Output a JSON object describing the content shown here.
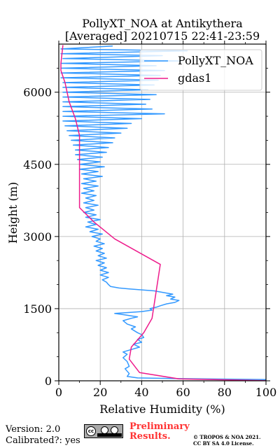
{
  "chart_data": {
    "type": "line",
    "title_line1": "PollyXT_NOA at Antikythera",
    "title_line2": "[Averaged] 20210715 22:41-23:59",
    "xlabel": "Relative Humidity (%)",
    "ylabel": "Height (m)",
    "xlim": [
      0,
      100
    ],
    "ylim": [
      0,
      7000
    ],
    "xticks": [
      0,
      20,
      40,
      60,
      80,
      100
    ],
    "yticks": [
      0,
      1500,
      3000,
      4500,
      6000
    ],
    "grid": true,
    "legend_position": "top-right",
    "series": [
      {
        "name": "PollyXT_NOA",
        "color": "#3399ff",
        "points": [
          [
            100,
            25
          ],
          [
            58,
            45
          ],
          [
            38,
            60
          ],
          [
            33,
            90
          ],
          [
            34,
            150
          ],
          [
            32,
            250
          ],
          [
            34,
            300
          ],
          [
            33,
            400
          ],
          [
            31,
            480
          ],
          [
            33,
            550
          ],
          [
            31,
            600
          ],
          [
            35,
            650
          ],
          [
            39,
            700
          ],
          [
            36,
            760
          ],
          [
            40,
            800
          ],
          [
            38,
            860
          ],
          [
            41,
            900
          ],
          [
            40,
            960
          ],
          [
            38,
            1000
          ],
          [
            35,
            1080
          ],
          [
            37,
            1120
          ],
          [
            33,
            1180
          ],
          [
            31,
            1250
          ],
          [
            35,
            1300
          ],
          [
            38,
            1330
          ],
          [
            32,
            1370
          ],
          [
            27,
            1400
          ],
          [
            34,
            1420
          ],
          [
            40,
            1440
          ],
          [
            45,
            1470
          ],
          [
            44,
            1500
          ],
          [
            47,
            1530
          ],
          [
            49,
            1560
          ],
          [
            52,
            1600
          ],
          [
            56,
            1630
          ],
          [
            58,
            1670
          ],
          [
            54,
            1700
          ],
          [
            56,
            1740
          ],
          [
            52,
            1770
          ],
          [
            55,
            1800
          ],
          [
            50,
            1840
          ],
          [
            46,
            1870
          ],
          [
            40,
            1890
          ],
          [
            34,
            1910
          ],
          [
            29,
            1930
          ],
          [
            25,
            1960
          ],
          [
            24,
            2000
          ],
          [
            23,
            2050
          ],
          [
            21,
            2100
          ],
          [
            24,
            2150
          ],
          [
            20,
            2200
          ],
          [
            24,
            2250
          ],
          [
            20,
            2300
          ],
          [
            23,
            2350
          ],
          [
            19,
            2400
          ],
          [
            22,
            2450
          ],
          [
            18,
            2500
          ],
          [
            23,
            2550
          ],
          [
            19,
            2600
          ],
          [
            22,
            2650
          ],
          [
            18,
            2700
          ],
          [
            21,
            2750
          ],
          [
            17,
            2800
          ],
          [
            22,
            2850
          ],
          [
            18,
            2900
          ],
          [
            20,
            2950
          ],
          [
            16,
            3000
          ],
          [
            21,
            3050
          ],
          [
            15,
            3100
          ],
          [
            19,
            3150
          ],
          [
            13,
            3200
          ],
          [
            18,
            3250
          ],
          [
            14,
            3300
          ],
          [
            20,
            3350
          ],
          [
            13,
            3400
          ],
          [
            18,
            3450
          ],
          [
            12,
            3500
          ],
          [
            17,
            3550
          ],
          [
            13,
            3600
          ],
          [
            19,
            3650
          ],
          [
            12,
            3700
          ],
          [
            17,
            3750
          ],
          [
            13,
            3800
          ],
          [
            18,
            3850
          ],
          [
            11,
            3900
          ],
          [
            17,
            3950
          ],
          [
            12,
            4000
          ],
          [
            19,
            4050
          ],
          [
            11,
            4100
          ],
          [
            18,
            4150
          ],
          [
            12,
            4200
          ],
          [
            21,
            4250
          ],
          [
            11,
            4300
          ],
          [
            19,
            4350
          ],
          [
            10,
            4400
          ],
          [
            22,
            4450
          ],
          [
            10,
            4500
          ],
          [
            20,
            4550
          ],
          [
            9,
            4600
          ],
          [
            21,
            4650
          ],
          [
            8,
            4700
          ],
          [
            23,
            4750
          ],
          [
            8,
            4800
          ],
          [
            24,
            4850
          ],
          [
            7,
            4900
          ],
          [
            26,
            4950
          ],
          [
            6,
            5000
          ],
          [
            27,
            5050
          ],
          [
            5,
            5100
          ],
          [
            30,
            5150
          ],
          [
            4,
            5200
          ],
          [
            33,
            5250
          ],
          [
            3,
            5300
          ],
          [
            35,
            5350
          ],
          [
            2,
            5400
          ],
          [
            40,
            5450
          ],
          [
            2,
            5500
          ],
          [
            51,
            5550
          ],
          [
            2,
            5600
          ],
          [
            45,
            5650
          ],
          [
            2,
            5700
          ],
          [
            42,
            5750
          ],
          [
            2,
            5800
          ],
          [
            44,
            5850
          ],
          [
            2,
            5900
          ],
          [
            47,
            5950
          ],
          [
            2,
            6000
          ],
          [
            43,
            6050
          ],
          [
            2,
            6100
          ],
          [
            46,
            6150
          ],
          [
            2,
            6200
          ],
          [
            48,
            6250
          ],
          [
            1,
            6300
          ],
          [
            49,
            6350
          ],
          [
            1,
            6400
          ],
          [
            51,
            6450
          ],
          [
            1,
            6500
          ],
          [
            47,
            6550
          ],
          [
            1,
            6600
          ],
          [
            59,
            6650
          ],
          [
            2,
            6700
          ],
          [
            50,
            6760
          ],
          [
            1,
            6800
          ],
          [
            62,
            6860
          ],
          [
            1,
            6900
          ],
          [
            26,
            6960
          ]
        ]
      },
      {
        "name": "gdas1",
        "color": "#ee1c8c",
        "points": [
          [
            2,
            6980
          ],
          [
            1,
            6600
          ],
          [
            1,
            6450
          ],
          [
            3,
            6200
          ],
          [
            5,
            5800
          ],
          [
            8,
            5450
          ],
          [
            10,
            5100
          ],
          [
            10,
            4500
          ],
          [
            10,
            3600
          ],
          [
            17,
            3300
          ],
          [
            27,
            2950
          ],
          [
            49,
            2420
          ],
          [
            45,
            1300
          ],
          [
            41,
            1000
          ],
          [
            35,
            700
          ],
          [
            34,
            450
          ],
          [
            39,
            170
          ],
          [
            58,
            40
          ],
          [
            100,
            5
          ]
        ]
      }
    ]
  },
  "footer": {
    "version": "Version: 2.0",
    "calibrated": "Calibrated?: yes",
    "preliminary_line1": "Preliminary",
    "preliminary_line2": "Results.",
    "credit_line1": "© TROPOS & NOA 2021.",
    "credit_line2": "CC BY SA 4.0 License.",
    "license_badge_text": "cc"
  }
}
